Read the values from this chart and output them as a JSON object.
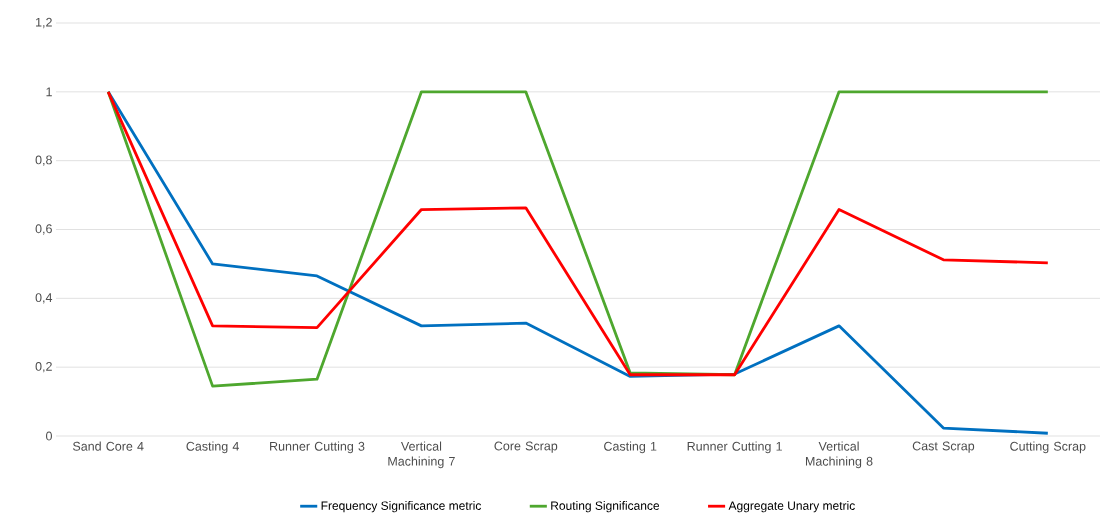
{
  "chart_data": {
    "type": "line",
    "categories": [
      "Sand Core 4",
      "Casting 4",
      "Runner Cutting 3",
      "Vertical Machining 7",
      "Core Scrap",
      "Casting 1",
      "Runner Cutting 1",
      "Vertical Machining 8",
      "Cast Scrap",
      "Cutting Scrap"
    ],
    "series": [
      {
        "name": "Frequency Significance metric",
        "color": "#0070c0",
        "values": [
          1,
          0.5,
          0.465,
          0.32,
          0.328,
          0.173,
          0.18,
          0.32,
          0.023,
          0.008
        ]
      },
      {
        "name": "Routing Significance",
        "color": "#4ea72e",
        "values": [
          1,
          0.145,
          0.165,
          1,
          1,
          0.183,
          0.178,
          1,
          1,
          1
        ]
      },
      {
        "name": "Aggregate Unary metric",
        "color": "#ff0000",
        "values": [
          1,
          0.32,
          0.315,
          0.658,
          0.663,
          0.178,
          0.178,
          0.658,
          0.512,
          0.503
        ]
      }
    ],
    "ylim": [
      0,
      1.2
    ],
    "yticks": [
      0,
      {
        "value": 0.2,
        "label": "0,2"
      },
      {
        "value": 0.4,
        "label": "0,4"
      },
      {
        "value": 0.6,
        "label": "0,6"
      },
      {
        "value": 0.8,
        "label": "0,8"
      },
      1,
      {
        "value": 1.2,
        "label": "1,2"
      }
    ],
    "grid": "y",
    "legend": "bottom",
    "marker": "none",
    "line_style": "solid"
  }
}
